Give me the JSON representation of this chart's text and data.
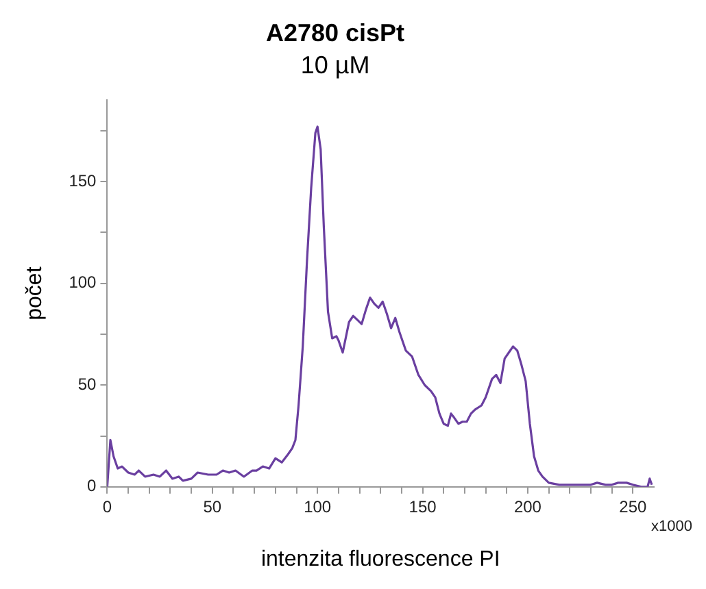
{
  "chart_data": {
    "type": "line",
    "title": "A2780 cisPt",
    "subtitle": "10 µM",
    "xlabel": "intenzita fluorescence PI",
    "ylabel": "počet",
    "annotations": [
      "x1000"
    ],
    "series": [
      {
        "color": "#6a3fa0",
        "x": [
          0,
          1.5,
          3,
          5,
          7,
          10,
          13,
          15,
          18,
          22,
          25,
          28,
          31,
          34,
          36,
          40,
          43,
          48,
          52,
          55,
          58,
          61,
          65,
          69,
          71,
          74,
          77,
          80,
          83,
          86,
          88,
          89.5,
          91,
          93,
          95,
          97,
          99,
          100,
          101.5,
          103,
          105,
          107,
          109,
          110,
          112,
          115,
          117,
          119,
          121,
          123,
          125,
          127,
          129,
          131,
          133,
          135,
          137,
          139,
          142,
          145,
          148,
          151,
          154,
          156,
          158,
          160,
          162,
          163.5,
          165,
          167,
          169,
          171,
          173,
          175,
          178,
          180,
          183,
          185,
          187,
          189,
          191,
          193,
          195,
          197,
          199,
          201,
          203,
          205,
          207,
          210,
          215,
          220,
          225,
          230,
          233,
          237,
          240,
          243,
          247,
          250,
          254,
          257,
          258,
          259
        ],
        "values": [
          0,
          23,
          15,
          9,
          10,
          7,
          6,
          8,
          5,
          6,
          5,
          8,
          4,
          5,
          3,
          4,
          7,
          6,
          6,
          8,
          7,
          8,
          5,
          8,
          8,
          10,
          9,
          14,
          12,
          16,
          19,
          23,
          40,
          69,
          111,
          147,
          174,
          177,
          166,
          128,
          86,
          73,
          74,
          72,
          66,
          81,
          84,
          82,
          80,
          87,
          93,
          90,
          88,
          91,
          85,
          78,
          83,
          76,
          67,
          64,
          55,
          50,
          47,
          44,
          36,
          31,
          30,
          36,
          34,
          31,
          32,
          32,
          36,
          38,
          40,
          44,
          53,
          55,
          51,
          63,
          66,
          69,
          67,
          60,
          52,
          31,
          15,
          8,
          5,
          2,
          1,
          1,
          1,
          1,
          2,
          1,
          1,
          2,
          2,
          1,
          0,
          0,
          4,
          1
        ]
      }
    ],
    "xlim": [
      0,
      260
    ],
    "ylim": [
      0,
      190
    ],
    "xticks": [
      0,
      {
        "value": 10,
        "label": null
      },
      {
        "value": 20,
        "label": null
      },
      {
        "value": 30,
        "label": null
      },
      {
        "value": 40,
        "label": null
      },
      50,
      {
        "value": 60,
        "label": null
      },
      {
        "value": 70,
        "label": null
      },
      {
        "value": 80,
        "label": null
      },
      {
        "value": 90,
        "label": null
      },
      100,
      {
        "value": 110,
        "label": null
      },
      {
        "value": 120,
        "label": null
      },
      {
        "value": 130,
        "label": null
      },
      {
        "value": 140,
        "label": null
      },
      150,
      {
        "value": 160,
        "label": null
      },
      {
        "value": 170,
        "label": null
      },
      {
        "value": 180,
        "label": null
      },
      {
        "value": 190,
        "label": null
      },
      200,
      {
        "value": 210,
        "label": null
      },
      {
        "value": 220,
        "label": null
      },
      {
        "value": 230,
        "label": null
      },
      {
        "value": 240,
        "label": null
      },
      250
    ],
    "yticks": [
      0,
      {
        "value": 25,
        "label": null
      },
      50,
      {
        "value": 75,
        "label": null
      },
      100,
      {
        "value": 125,
        "label": null
      },
      150,
      {
        "value": 175,
        "label": null
      }
    ],
    "grid": false,
    "legend": false
  }
}
